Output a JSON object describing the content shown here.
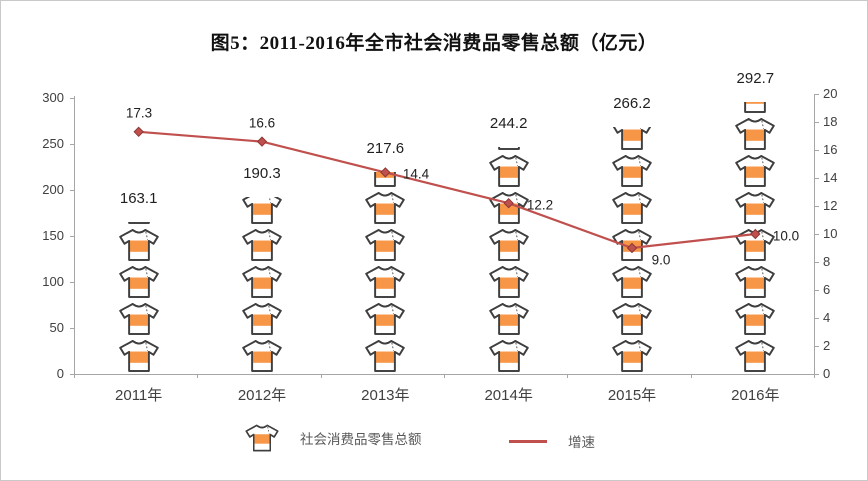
{
  "chart_data": {
    "type": "pictograph-bar+line",
    "title": "图5：2011-2016年全市社会消费品零售总额（亿元）",
    "categories": [
      "2011年",
      "2012年",
      "2013年",
      "2014年",
      "2015年",
      "2016年"
    ],
    "series": [
      {
        "name": "社会消费品零售总额",
        "type": "pictograph-bar",
        "axis": "left",
        "icon": "t-shirt-icon",
        "unit_per_icon": 40,
        "values": [
          163.1,
          190.3,
          217.6,
          244.2,
          266.2,
          292.7
        ],
        "labels": [
          "163.1",
          "190.3",
          "217.6",
          "244.2",
          "266.2",
          "292.7"
        ]
      },
      {
        "name": "增速",
        "type": "line",
        "axis": "right",
        "marker": "diamond",
        "values": [
          17.3,
          16.6,
          14.4,
          12.2,
          9.0,
          10.0
        ],
        "labels": [
          "17.3",
          "16.6",
          "14.4",
          "12.2",
          "9.0",
          "10.0"
        ],
        "label_positions": [
          "above",
          "above",
          "right",
          "right",
          "below-right",
          "right"
        ]
      }
    ],
    "left_axis": {
      "min": 0,
      "max": 300,
      "step": 50,
      "ticks": [
        "0",
        "50",
        "100",
        "150",
        "200",
        "250",
        "300"
      ]
    },
    "right_axis": {
      "min": 0,
      "max": 20,
      "step": 2,
      "ticks": [
        "0",
        "2",
        "4",
        "6",
        "8",
        "10",
        "12",
        "14",
        "16",
        "18",
        "20"
      ]
    },
    "grid": "off",
    "legend": {
      "position": "bottom",
      "items": [
        {
          "icon": "t-shirt-icon",
          "label": "社会消费品零售总额"
        },
        {
          "icon": "line-swatch",
          "label": "增速"
        }
      ]
    },
    "colors": {
      "shirt_fill": "#F79646",
      "shirt_outline": "#3F3F3F",
      "line": "#C0504D",
      "marker_stroke": "#8C3836",
      "axis": "#A6A6A6",
      "text": "#404040"
    }
  }
}
